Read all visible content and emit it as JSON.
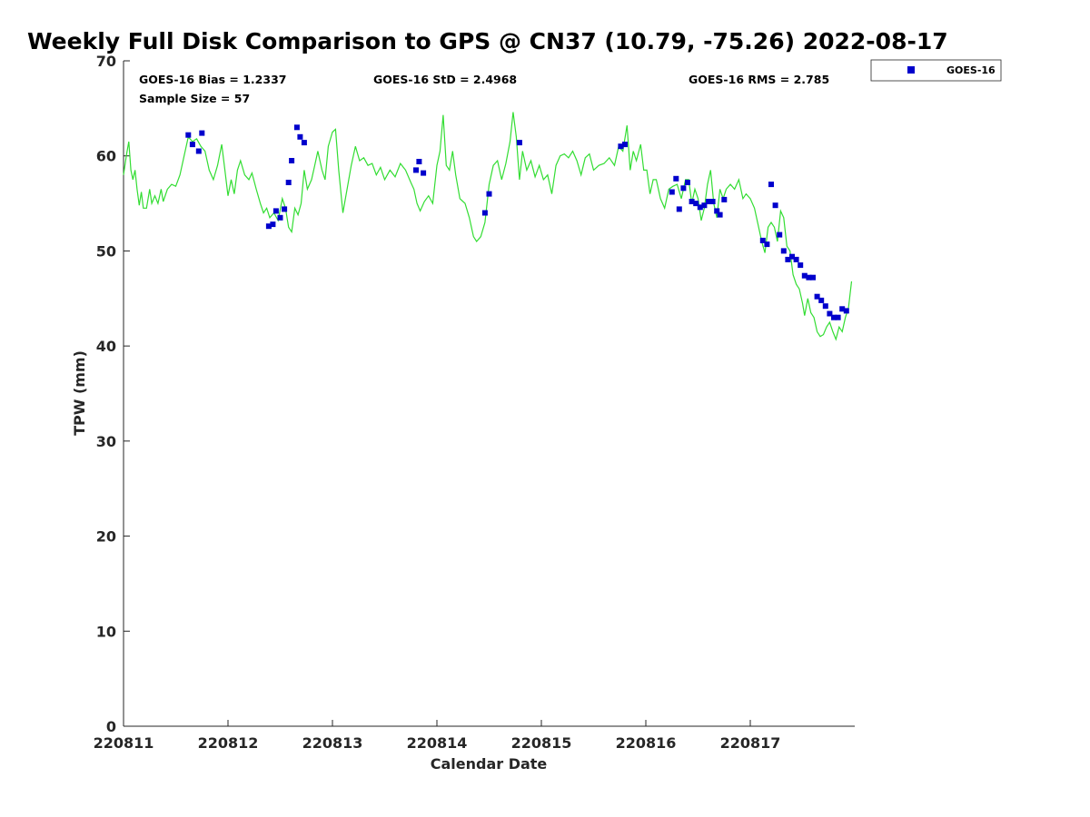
{
  "chart_data": {
    "type": "scatter",
    "title": "Weekly Full Disk Comparison to GPS @ CN37 (10.79, -75.26) 2022-08-17",
    "xlabel": "Calendar Date",
    "ylabel": "TPW (mm)",
    "xlim": [
      0,
      7
    ],
    "ylim": [
      0,
      70
    ],
    "x_ticks": [
      {
        "value": 0,
        "label": "220811"
      },
      {
        "value": 1,
        "label": "220812"
      },
      {
        "value": 2,
        "label": "220813"
      },
      {
        "value": 3,
        "label": "220814"
      },
      {
        "value": 4,
        "label": "220815"
      },
      {
        "value": 5,
        "label": "220816"
      },
      {
        "value": 6,
        "label": "220817"
      }
    ],
    "y_ticks": [
      0,
      10,
      20,
      30,
      40,
      50,
      60,
      70
    ],
    "grid": false,
    "legend": {
      "position": "outside-top-right",
      "entries": [
        "GOES-16"
      ]
    },
    "stats": {
      "bias": "GOES-16 Bias = 1.2337",
      "std": "GOES-16 StD = 2.4968",
      "rms": "GOES-16 RMS = 2.785",
      "sample": "Sample Size = 57"
    },
    "series": [
      {
        "name": "GOES-16",
        "kind": "scatter",
        "marker": "square",
        "color": "#0000cc",
        "points": [
          [
            0.62,
            62.2
          ],
          [
            0.66,
            61.2
          ],
          [
            0.72,
            60.5
          ],
          [
            0.75,
            62.4
          ],
          [
            1.39,
            52.6
          ],
          [
            1.43,
            52.8
          ],
          [
            1.46,
            54.2
          ],
          [
            1.5,
            53.5
          ],
          [
            1.54,
            54.4
          ],
          [
            1.58,
            57.2
          ],
          [
            1.61,
            59.5
          ],
          [
            1.66,
            63.0
          ],
          [
            1.69,
            62.0
          ],
          [
            1.73,
            61.4
          ],
          [
            2.8,
            58.5
          ],
          [
            2.83,
            59.4
          ],
          [
            2.87,
            58.2
          ],
          [
            3.46,
            54.0
          ],
          [
            3.5,
            56.0
          ],
          [
            3.79,
            61.4
          ],
          [
            4.76,
            61.0
          ],
          [
            4.8,
            61.2
          ],
          [
            5.25,
            56.2
          ],
          [
            5.29,
            57.6
          ],
          [
            5.32,
            54.4
          ],
          [
            5.36,
            56.6
          ],
          [
            5.4,
            57.2
          ],
          [
            5.44,
            55.2
          ],
          [
            5.48,
            55.0
          ],
          [
            5.52,
            54.6
          ],
          [
            5.56,
            54.8
          ],
          [
            5.6,
            55.2
          ],
          [
            5.64,
            55.2
          ],
          [
            5.68,
            54.2
          ],
          [
            5.71,
            53.8
          ],
          [
            5.75,
            55.4
          ],
          [
            6.12,
            51.1
          ],
          [
            6.16,
            50.7
          ],
          [
            6.2,
            57.0
          ],
          [
            6.24,
            54.8
          ],
          [
            6.28,
            51.7
          ],
          [
            6.32,
            50.0
          ],
          [
            6.36,
            49.1
          ],
          [
            6.4,
            49.4
          ],
          [
            6.44,
            49.1
          ],
          [
            6.48,
            48.5
          ],
          [
            6.52,
            47.4
          ],
          [
            6.56,
            47.2
          ],
          [
            6.6,
            47.2
          ],
          [
            6.64,
            45.2
          ],
          [
            6.68,
            44.8
          ],
          [
            6.72,
            44.2
          ],
          [
            6.76,
            43.4
          ],
          [
            6.8,
            43.0
          ],
          [
            6.84,
            43.0
          ],
          [
            6.88,
            43.9
          ],
          [
            6.92,
            43.7
          ]
        ]
      },
      {
        "name": "",
        "kind": "line",
        "color": "#33dd33",
        "points": [
          [
            0.0,
            58.0
          ],
          [
            0.03,
            60.2
          ],
          [
            0.05,
            61.5
          ],
          [
            0.07,
            58.5
          ],
          [
            0.09,
            57.5
          ],
          [
            0.11,
            58.5
          ],
          [
            0.13,
            56.5
          ],
          [
            0.15,
            54.8
          ],
          [
            0.17,
            56.2
          ],
          [
            0.19,
            54.5
          ],
          [
            0.22,
            54.5
          ],
          [
            0.25,
            56.5
          ],
          [
            0.27,
            55.0
          ],
          [
            0.3,
            55.8
          ],
          [
            0.33,
            55.0
          ],
          [
            0.36,
            56.5
          ],
          [
            0.38,
            55.2
          ],
          [
            0.42,
            56.5
          ],
          [
            0.46,
            57.0
          ],
          [
            0.5,
            56.8
          ],
          [
            0.54,
            58.0
          ],
          [
            0.58,
            60.0
          ],
          [
            0.62,
            62.0
          ],
          [
            0.66,
            61.5
          ],
          [
            0.7,
            61.8
          ],
          [
            0.74,
            61.0
          ],
          [
            0.78,
            60.5
          ],
          [
            0.82,
            58.5
          ],
          [
            0.86,
            57.5
          ],
          [
            0.9,
            59.0
          ],
          [
            0.94,
            61.2
          ],
          [
            0.97,
            58.5
          ],
          [
            1.0,
            55.8
          ],
          [
            1.03,
            57.5
          ],
          [
            1.06,
            56.0
          ],
          [
            1.09,
            58.5
          ],
          [
            1.12,
            59.5
          ],
          [
            1.16,
            58.0
          ],
          [
            1.2,
            57.5
          ],
          [
            1.23,
            58.2
          ],
          [
            1.27,
            56.5
          ],
          [
            1.31,
            55.0
          ],
          [
            1.34,
            54.0
          ],
          [
            1.37,
            54.5
          ],
          [
            1.4,
            53.5
          ],
          [
            1.44,
            54.0
          ],
          [
            1.48,
            53.2
          ],
          [
            1.52,
            55.5
          ],
          [
            1.55,
            54.5
          ],
          [
            1.58,
            52.5
          ],
          [
            1.61,
            52.0
          ],
          [
            1.64,
            54.5
          ],
          [
            1.67,
            53.8
          ],
          [
            1.7,
            55.0
          ],
          [
            1.73,
            58.5
          ],
          [
            1.76,
            56.5
          ],
          [
            1.8,
            57.5
          ],
          [
            1.83,
            59.0
          ],
          [
            1.86,
            60.5
          ],
          [
            1.9,
            58.5
          ],
          [
            1.93,
            57.5
          ],
          [
            1.96,
            61.0
          ],
          [
            2.0,
            62.5
          ],
          [
            2.03,
            62.8
          ],
          [
            2.06,
            58.5
          ],
          [
            2.1,
            54.0
          ],
          [
            2.14,
            56.5
          ],
          [
            2.18,
            59.0
          ],
          [
            2.22,
            61.0
          ],
          [
            2.26,
            59.5
          ],
          [
            2.3,
            59.8
          ],
          [
            2.34,
            59.0
          ],
          [
            2.38,
            59.2
          ],
          [
            2.42,
            58.0
          ],
          [
            2.46,
            58.8
          ],
          [
            2.5,
            57.5
          ],
          [
            2.55,
            58.5
          ],
          [
            2.6,
            57.8
          ],
          [
            2.65,
            59.2
          ],
          [
            2.7,
            58.5
          ],
          [
            2.75,
            57.2
          ],
          [
            2.78,
            56.5
          ],
          [
            2.81,
            55.0
          ],
          [
            2.84,
            54.2
          ],
          [
            2.88,
            55.2
          ],
          [
            2.92,
            55.8
          ],
          [
            2.96,
            55.0
          ],
          [
            3.0,
            59.0
          ],
          [
            3.03,
            60.5
          ],
          [
            3.06,
            64.3
          ],
          [
            3.09,
            59.0
          ],
          [
            3.12,
            58.5
          ],
          [
            3.15,
            60.5
          ],
          [
            3.18,
            58.0
          ],
          [
            3.22,
            55.5
          ],
          [
            3.27,
            55.0
          ],
          [
            3.31,
            53.5
          ],
          [
            3.35,
            51.5
          ],
          [
            3.38,
            51.0
          ],
          [
            3.42,
            51.5
          ],
          [
            3.46,
            53.0
          ],
          [
            3.5,
            57.0
          ],
          [
            3.54,
            59.0
          ],
          [
            3.58,
            59.5
          ],
          [
            3.62,
            57.5
          ],
          [
            3.66,
            59.2
          ],
          [
            3.7,
            61.5
          ],
          [
            3.73,
            64.6
          ],
          [
            3.76,
            62.0
          ],
          [
            3.79,
            57.5
          ],
          [
            3.82,
            60.5
          ],
          [
            3.86,
            58.5
          ],
          [
            3.9,
            59.5
          ],
          [
            3.94,
            57.8
          ],
          [
            3.98,
            59.0
          ],
          [
            4.02,
            57.5
          ],
          [
            4.06,
            58.0
          ],
          [
            4.1,
            56.0
          ],
          [
            4.14,
            59.0
          ],
          [
            4.18,
            60.0
          ],
          [
            4.22,
            60.2
          ],
          [
            4.26,
            59.8
          ],
          [
            4.3,
            60.5
          ],
          [
            4.34,
            59.5
          ],
          [
            4.38,
            58.0
          ],
          [
            4.42,
            59.8
          ],
          [
            4.46,
            60.2
          ],
          [
            4.5,
            58.5
          ],
          [
            4.55,
            59.0
          ],
          [
            4.6,
            59.2
          ],
          [
            4.65,
            59.8
          ],
          [
            4.7,
            59.0
          ],
          [
            4.74,
            61.0
          ],
          [
            4.78,
            60.5
          ],
          [
            4.82,
            63.2
          ],
          [
            4.85,
            58.5
          ],
          [
            4.88,
            60.5
          ],
          [
            4.91,
            59.5
          ],
          [
            4.95,
            61.2
          ],
          [
            4.98,
            58.5
          ],
          [
            5.01,
            58.5
          ],
          [
            5.04,
            56.0
          ],
          [
            5.07,
            57.5
          ],
          [
            5.1,
            57.5
          ],
          [
            5.14,
            55.5
          ],
          [
            5.18,
            54.5
          ],
          [
            5.22,
            56.5
          ],
          [
            5.26,
            56.8
          ],
          [
            5.3,
            57.0
          ],
          [
            5.34,
            55.5
          ],
          [
            5.38,
            57.5
          ],
          [
            5.41,
            57.5
          ],
          [
            5.44,
            55.0
          ],
          [
            5.47,
            56.5
          ],
          [
            5.5,
            55.5
          ],
          [
            5.53,
            53.2
          ],
          [
            5.56,
            54.5
          ],
          [
            5.59,
            57.0
          ],
          [
            5.62,
            58.5
          ],
          [
            5.65,
            55.0
          ],
          [
            5.68,
            53.5
          ],
          [
            5.71,
            56.5
          ],
          [
            5.74,
            55.5
          ],
          [
            5.77,
            56.5
          ],
          [
            5.81,
            57.0
          ],
          [
            5.85,
            56.5
          ],
          [
            5.89,
            57.5
          ],
          [
            5.93,
            55.5
          ],
          [
            5.96,
            56.0
          ],
          [
            6.0,
            55.5
          ],
          [
            6.04,
            54.5
          ],
          [
            6.08,
            52.5
          ],
          [
            6.11,
            51.0
          ],
          [
            6.14,
            49.8
          ],
          [
            6.17,
            52.5
          ],
          [
            6.2,
            53.0
          ],
          [
            6.23,
            52.5
          ],
          [
            6.26,
            51.0
          ],
          [
            6.29,
            54.2
          ],
          [
            6.32,
            53.5
          ],
          [
            6.35,
            50.5
          ],
          [
            6.38,
            50.0
          ],
          [
            6.41,
            47.5
          ],
          [
            6.44,
            46.5
          ],
          [
            6.47,
            46.0
          ],
          [
            6.5,
            44.5
          ],
          [
            6.52,
            43.2
          ],
          [
            6.55,
            45.0
          ],
          [
            6.58,
            43.5
          ],
          [
            6.61,
            43.0
          ],
          [
            6.64,
            41.5
          ],
          [
            6.67,
            41.0
          ],
          [
            6.7,
            41.2
          ],
          [
            6.73,
            42.0
          ],
          [
            6.76,
            42.5
          ],
          [
            6.79,
            41.5
          ],
          [
            6.82,
            40.7
          ],
          [
            6.85,
            42.0
          ],
          [
            6.88,
            41.5
          ],
          [
            6.91,
            43.0
          ],
          [
            6.94,
            44.0
          ],
          [
            6.97,
            46.8
          ]
        ]
      }
    ]
  }
}
